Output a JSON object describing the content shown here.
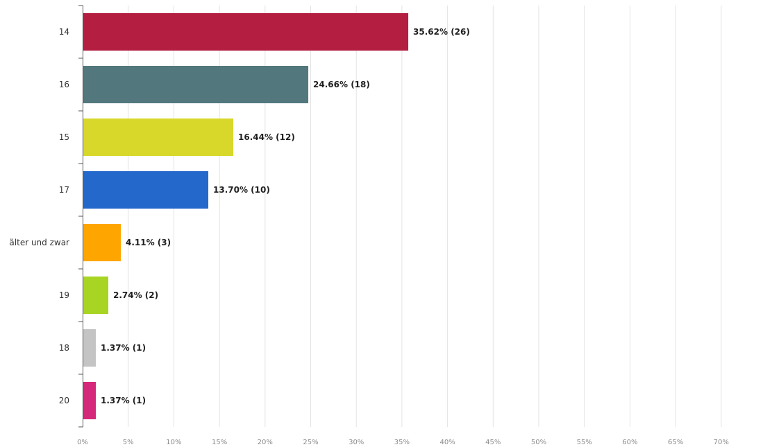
{
  "chart_data": {
    "type": "bar",
    "orientation": "horizontal",
    "categories": [
      "14",
      "16",
      "15",
      "17",
      "älter und zwar",
      "19",
      "18",
      "20"
    ],
    "values": [
      35.62,
      24.66,
      16.44,
      13.7,
      4.11,
      2.74,
      1.37,
      1.37
    ],
    "value_labels": [
      "35.62% (26)",
      "24.66% (18)",
      "16.44% (12)",
      "13.70% (10)",
      "4.11% (3)",
      "2.74% (2)",
      "1.37% (1)",
      "1.37% (1)"
    ],
    "colors": [
      "#b41e40",
      "#52787d",
      "#d8d82a",
      "#2468cc",
      "#ffa500",
      "#a8d424",
      "#c4c4c4",
      "#d6287a"
    ],
    "xlim": [
      0,
      75
    ],
    "x_ticks": [
      "0%",
      "5%",
      "10%",
      "15%",
      "20%",
      "25%",
      "30%",
      "35%",
      "40%",
      "45%",
      "50%",
      "55%",
      "60%",
      "65%",
      "70%"
    ],
    "grid": true,
    "title": "",
    "xlabel": "",
    "ylabel": ""
  }
}
